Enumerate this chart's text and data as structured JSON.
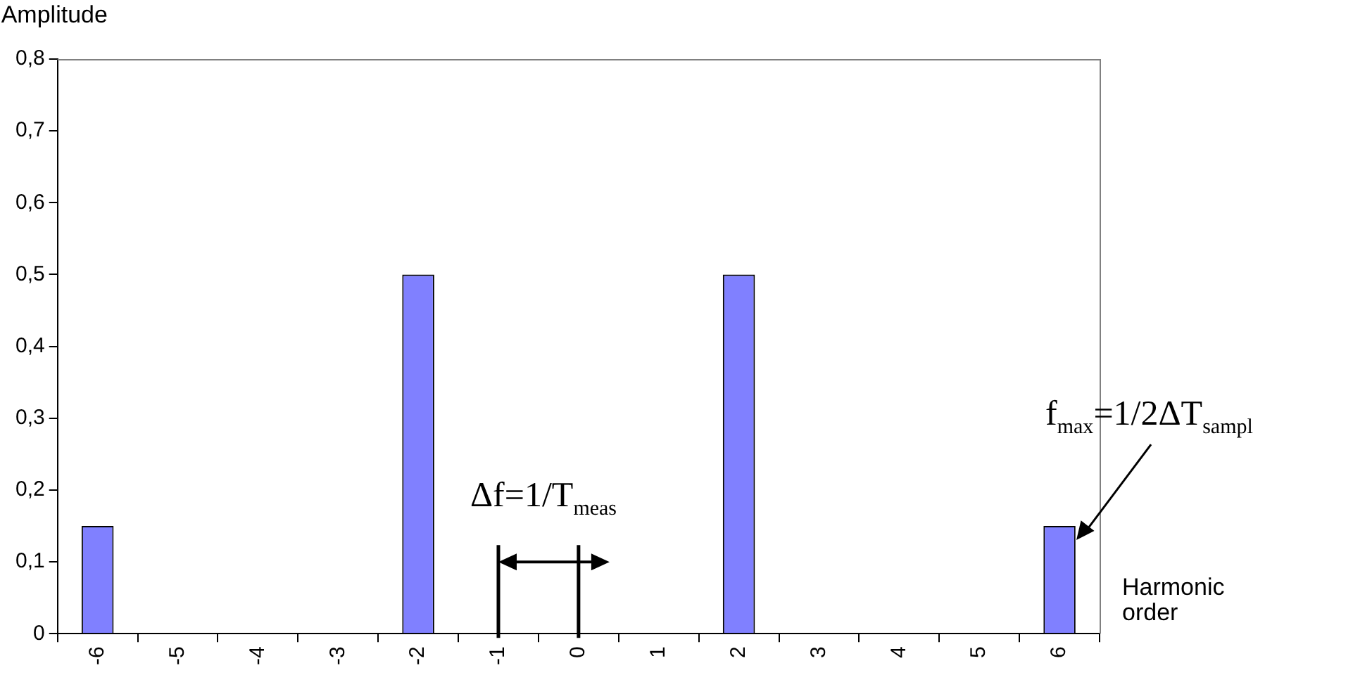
{
  "chart_data": {
    "type": "bar",
    "xlabel": "Harmonic order",
    "ylabel": "Amplitude",
    "categories": [
      "-6",
      "-5",
      "-4",
      "-3",
      "-2",
      "-1",
      "0",
      "1",
      "2",
      "3",
      "4",
      "5",
      "6"
    ],
    "values": [
      0.15,
      0,
      0,
      0,
      0.5,
      0,
      0,
      0,
      0.5,
      0,
      0,
      0,
      0.15
    ],
    "color": "#8080ff",
    "ylim": [
      0,
      0.8
    ],
    "yticks": [
      0,
      {
        "value": 0.1,
        "label": "0,1"
      },
      {
        "value": 0.2,
        "label": "0,2"
      },
      {
        "value": 0.3,
        "label": "0,3"
      },
      {
        "value": 0.4,
        "label": "0,4"
      },
      {
        "value": 0.5,
        "label": "0,5"
      },
      {
        "value": 0.6,
        "label": "0,6"
      },
      {
        "value": 0.7,
        "label": "0,7"
      },
      {
        "value": 0.8,
        "label": "0,8"
      }
    ],
    "annotations": [
      {
        "text": "Δf=1/T$_{meas}$",
        "x": "-1",
        "y": 0
      },
      {
        "text": "f$_{max}$=1/2ΔT$_{sampl}$",
        "x": "6",
        "y": 0.15
      }
    ],
    "legend": false
  }
}
